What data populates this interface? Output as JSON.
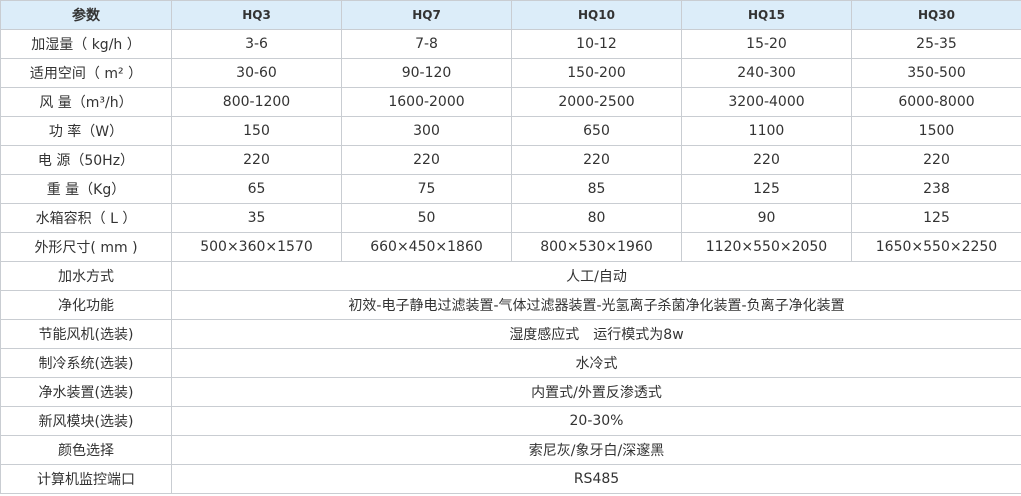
{
  "table": {
    "header": [
      "参数",
      "HQ3",
      "HQ7",
      "HQ10",
      "HQ15",
      "HQ30"
    ],
    "rows": [
      {
        "label": "加湿量（ kg/h ）",
        "values": [
          "3-6",
          "7-8",
          "10-12",
          "15-20",
          "25-35"
        ]
      },
      {
        "label": "适用空间（ m² ）",
        "values": [
          "30-60",
          "90-120",
          "150-200",
          "240-300",
          "350-500"
        ]
      },
      {
        "label": "风 量（m³/h）",
        "values": [
          "800-1200",
          "1600-2000",
          "2000-2500",
          "3200-4000",
          "6000-8000"
        ]
      },
      {
        "label": "功 率（W）",
        "values": [
          "150",
          "300",
          "650",
          "1100",
          "1500"
        ]
      },
      {
        "label": "电 源（50Hz）",
        "values": [
          "220",
          "220",
          "220",
          "220",
          "220"
        ]
      },
      {
        "label": "重 量（Kg）",
        "values": [
          "65",
          "75",
          "85",
          "125",
          "238"
        ]
      },
      {
        "label": "水箱容积（ L ）",
        "values": [
          "35",
          "50",
          "80",
          "90",
          "125"
        ]
      },
      {
        "label": "外形尺寸( mm )",
        "values": [
          "500×360×1570",
          "660×450×1860",
          "800×530×1960",
          "1120×550×2050",
          "1650×550×2250"
        ]
      },
      {
        "label": "加水方式",
        "span": "人工/自动"
      },
      {
        "label": "净化功能",
        "span": "初效-电子静电过滤装置-气体过滤器装置-光氢离子杀菌净化装置-负离子净化装置"
      },
      {
        "label": "节能风机(选装)",
        "span": "湿度感应式　运行模式为8w"
      },
      {
        "label": "制冷系统(选装)",
        "span": "水冷式"
      },
      {
        "label": "净水装置(选装)",
        "span": "内置式/外置反渗透式"
      },
      {
        "label": "新风模块(选装)",
        "span": "20-30%"
      },
      {
        "label": "颜色选择",
        "span": "索尼灰/象牙白/深邃黑"
      },
      {
        "label": "计算机监控端口",
        "span": "RS485"
      }
    ]
  },
  "colors": {
    "header_bg": "#dcedf9",
    "border": "#c9cdd2",
    "text": "#333333"
  }
}
